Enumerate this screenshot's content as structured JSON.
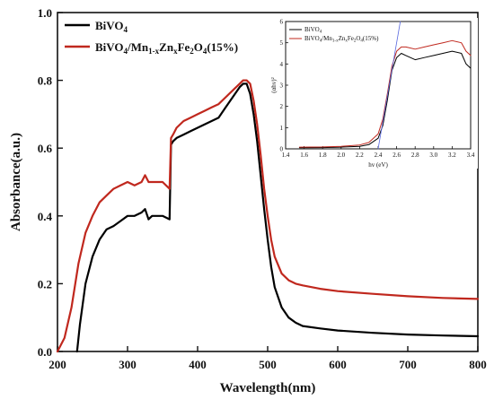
{
  "chart_data": [
    {
      "type": "line",
      "xlabel": "Wavelength(nm)",
      "ylabel": "Absorbance(a.u.)",
      "xlim": [
        200,
        800
      ],
      "ylim": [
        0.0,
        1.0
      ],
      "xticks": [
        200,
        300,
        400,
        500,
        600,
        700,
        800
      ],
      "xtick_labels": [
        "200",
        "300",
        "400",
        "500",
        "600",
        "700",
        "800"
      ],
      "yticks": [
        0.0,
        0.2,
        0.4,
        0.6,
        0.8,
        1.0
      ],
      "ytick_labels": [
        "0.0",
        "0.2",
        "0.4",
        "0.6",
        "0.8",
        "1.0"
      ],
      "legend_position": "top-left",
      "series": [
        {
          "name": "BiVO4",
          "label_parts": {
            "base": "BiVO",
            "sub": "4"
          },
          "color": "#000000",
          "x": [
            228,
            232,
            240,
            250,
            260,
            270,
            280,
            290,
            300,
            310,
            320,
            325,
            330,
            335,
            340,
            350,
            360,
            362,
            365,
            370,
            380,
            390,
            400,
            410,
            420,
            430,
            440,
            450,
            460,
            465,
            470,
            475,
            480,
            485,
            490,
            495,
            500,
            505,
            510,
            520,
            530,
            540,
            550,
            575,
            600,
            650,
            700,
            750,
            800
          ],
          "y": [
            0.0,
            0.08,
            0.2,
            0.28,
            0.33,
            0.36,
            0.37,
            0.385,
            0.4,
            0.4,
            0.41,
            0.42,
            0.39,
            0.4,
            0.4,
            0.4,
            0.39,
            0.61,
            0.62,
            0.63,
            0.64,
            0.65,
            0.66,
            0.67,
            0.68,
            0.69,
            0.72,
            0.75,
            0.78,
            0.79,
            0.79,
            0.76,
            0.7,
            0.62,
            0.52,
            0.42,
            0.33,
            0.25,
            0.19,
            0.13,
            0.1,
            0.085,
            0.075,
            0.068,
            0.062,
            0.055,
            0.05,
            0.047,
            0.045
          ]
        },
        {
          "name": "BiVO4/Mn1-xZnxFe2O4(15%)",
          "label_parts": {
            "base": "BiVO",
            "sub1": "4",
            "mid": "/Mn",
            "sub2": "1-x",
            "mid2": "Zn",
            "sub3": "x",
            "mid3": "Fe",
            "sub4": "2",
            "mid4": "O",
            "sub5": "4",
            "tail": "(15%)"
          },
          "color": "#c0281e",
          "x": [
            200,
            210,
            220,
            230,
            240,
            250,
            260,
            270,
            280,
            290,
            300,
            310,
            320,
            325,
            330,
            340,
            350,
            360,
            362,
            365,
            370,
            380,
            390,
            400,
            410,
            420,
            430,
            440,
            450,
            460,
            465,
            470,
            475,
            480,
            485,
            490,
            495,
            500,
            505,
            510,
            520,
            530,
            540,
            550,
            575,
            600,
            650,
            700,
            750,
            800
          ],
          "y": [
            0.0,
            0.04,
            0.13,
            0.26,
            0.35,
            0.4,
            0.44,
            0.46,
            0.48,
            0.49,
            0.5,
            0.49,
            0.5,
            0.52,
            0.5,
            0.5,
            0.5,
            0.48,
            0.63,
            0.64,
            0.66,
            0.68,
            0.69,
            0.7,
            0.71,
            0.72,
            0.73,
            0.75,
            0.77,
            0.79,
            0.8,
            0.8,
            0.79,
            0.74,
            0.67,
            0.58,
            0.48,
            0.4,
            0.33,
            0.28,
            0.23,
            0.21,
            0.2,
            0.195,
            0.185,
            0.178,
            0.17,
            0.163,
            0.158,
            0.155
          ]
        }
      ]
    },
    {
      "type": "line",
      "role": "inset",
      "xlabel": "hv (eV)",
      "ylabel": "(αhv)²",
      "xlim": [
        1.4,
        3.4
      ],
      "ylim": [
        0,
        6
      ],
      "xticks": [
        1.4,
        1.6,
        1.8,
        2.0,
        2.2,
        2.4,
        2.6,
        2.8,
        3.0,
        3.2,
        3.4
      ],
      "xtick_labels": [
        "1.4",
        "1.6",
        "1.8",
        "2.0",
        "2.2",
        "2.4",
        "2.6",
        "2.8",
        "3.0",
        "3.2",
        "3.4"
      ],
      "yticks": [
        0,
        1,
        2,
        3,
        4,
        5,
        6
      ],
      "ytick_labels": [
        "0",
        "1",
        "2",
        "3",
        "4",
        "5",
        "6"
      ],
      "legend_position": "top-left",
      "series": [
        {
          "name": "BiVO4",
          "label_parts": {
            "base": "BiVO",
            "sub": "4"
          },
          "color": "#000000",
          "x": [
            1.55,
            1.8,
            2.0,
            2.2,
            2.3,
            2.4,
            2.45,
            2.5,
            2.55,
            2.6,
            2.65,
            2.7,
            2.8,
            2.9,
            3.0,
            3.1,
            3.2,
            3.3,
            3.35,
            3.4
          ],
          "y": [
            0.05,
            0.06,
            0.08,
            0.12,
            0.2,
            0.5,
            1.1,
            2.3,
            3.7,
            4.3,
            4.5,
            4.4,
            4.2,
            4.3,
            4.4,
            4.5,
            4.6,
            4.5,
            4.0,
            3.8
          ]
        },
        {
          "name": "BiVO4/Mn1-xZnxFe2O4(15%)",
          "label_parts": {
            "base": "BiVO",
            "sub1": "4",
            "mid": "/Mn",
            "sub2": "1-x",
            "mid2": "Zn",
            "sub3": "x",
            "mid3": "Fe",
            "sub4": "2",
            "mid4": "O",
            "sub5": "4",
            "tail": "(15%)"
          },
          "color": "#c0281e",
          "x": [
            1.55,
            1.8,
            2.0,
            2.2,
            2.3,
            2.4,
            2.45,
            2.5,
            2.55,
            2.6,
            2.65,
            2.7,
            2.8,
            2.9,
            3.0,
            3.1,
            3.2,
            3.3,
            3.35,
            3.4
          ],
          "y": [
            0.08,
            0.09,
            0.12,
            0.18,
            0.3,
            0.7,
            1.4,
            2.6,
            3.9,
            4.6,
            4.8,
            4.8,
            4.7,
            4.8,
            4.9,
            5.0,
            5.1,
            5.0,
            4.6,
            4.4
          ]
        },
        {
          "name": "",
          "role": "tangent",
          "color": "#5a6adf",
          "x": [
            2.4,
            2.64
          ],
          "y": [
            0.0,
            6.0
          ]
        }
      ]
    }
  ]
}
